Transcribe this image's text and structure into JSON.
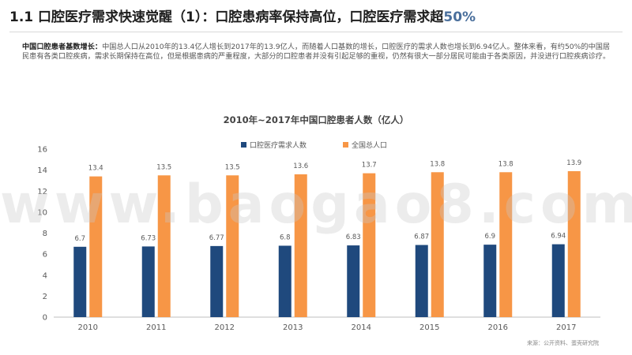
{
  "header": {
    "title_main": "1.1 口腔医疗需求快速觉醒（1）：口腔患病率保持高位，口腔医疗需求超",
    "title_accent": "50%"
  },
  "summary": {
    "lead": "中国口腔患者基数增长：",
    "body": "中国总人口从2010年的13.4亿人增长到2017年的13.9亿人，而随着人口基数的增长，口腔医疗的需求人数也增长到6.94亿人。整体来看，有约50%的中国居民患有各类口腔疾病，需求长期保持在高位，但是根据患病的严重程度，大部分的口腔患者并没有引起足够的重视，仍然有很大一部分居民可能由于各类原因，并没进行口腔疾病诊疗。"
  },
  "watermark": "www.baogao8.com",
  "source": "来源：公开资料、蛋壳研究院",
  "colors": {
    "demand": "#1f497d",
    "population": "#f79646",
    "axis": "#bfbfbf",
    "text": "#595959"
  },
  "chart_data": {
    "type": "bar",
    "title": "2010年~2017年中国口腔患者人数（亿人）",
    "categories": [
      "2010",
      "2011",
      "2012",
      "2013",
      "2014",
      "2015",
      "2016",
      "2017"
    ],
    "series": [
      {
        "name": "口腔医疗需求人数",
        "values": [
          6.7,
          6.73,
          6.77,
          6.8,
          6.83,
          6.87,
          6.9,
          6.94
        ],
        "labels": [
          "6.7",
          "6.73",
          "6.77",
          "6.8",
          "6.83",
          "6.87",
          "6.9",
          "6.94"
        ]
      },
      {
        "name": "全国总人口",
        "values": [
          13.4,
          13.5,
          13.5,
          13.6,
          13.7,
          13.8,
          13.8,
          13.9
        ],
        "labels": [
          "13.4",
          "13.5",
          "13.5",
          "13.6",
          "13.7",
          "13.8",
          "13.8",
          "13.9"
        ]
      }
    ],
    "yticks": [
      "0",
      "2",
      "4",
      "6",
      "8",
      "10",
      "12",
      "14",
      "16"
    ],
    "ylim": [
      0,
      16
    ],
    "grid": false,
    "legend_position": "top-center"
  }
}
